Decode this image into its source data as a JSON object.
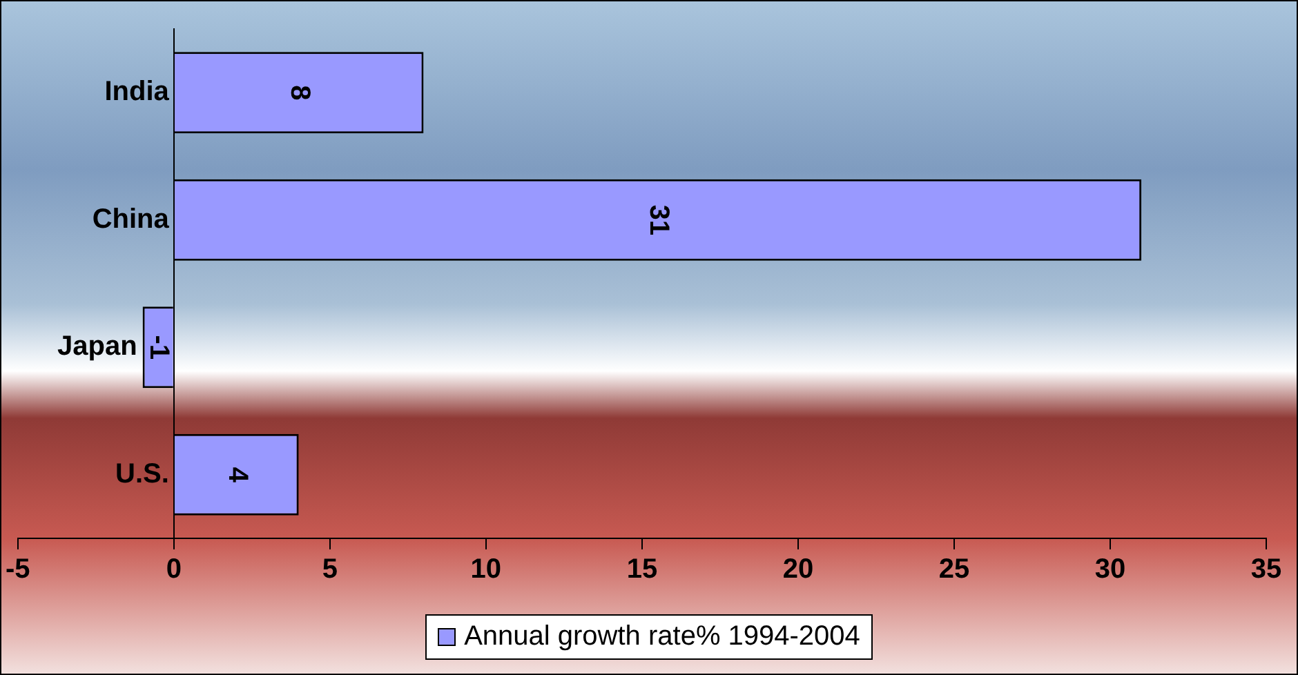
{
  "chart_data": {
    "type": "bar",
    "orientation": "horizontal",
    "categories": [
      "India",
      "China",
      "Japan",
      "U.S."
    ],
    "series": [
      {
        "name": "Annual growth rate% 1994-2004",
        "color": "#9999ff",
        "values": [
          8,
          31,
          -1,
          4
        ]
      }
    ],
    "xlim": [
      -5,
      35
    ],
    "xticks": [
      -5,
      0,
      5,
      10,
      15,
      20,
      25,
      30,
      35
    ],
    "data_labels": true,
    "legend": "bottom",
    "grid": false
  }
}
